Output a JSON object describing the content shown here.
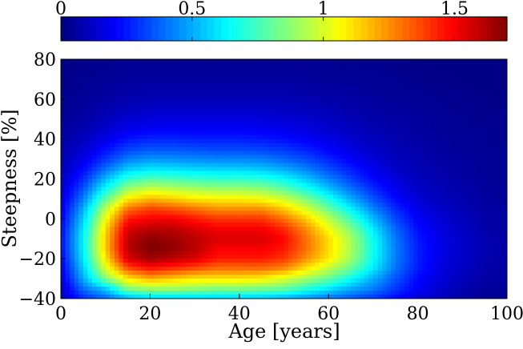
{
  "chart_data": {
    "type": "heatmap",
    "title": "",
    "xlabel": "Age [years]",
    "ylabel": "Steepness [%]",
    "xlim": [
      0,
      100
    ],
    "ylim": [
      -40,
      80
    ],
    "x_ticks": [
      "0",
      "20",
      "40",
      "60",
      "80",
      "100"
    ],
    "x_tick_values": [
      0,
      20,
      40,
      60,
      80,
      100
    ],
    "y_ticks": [
      "−40",
      "−20",
      "0",
      "20",
      "40",
      "60",
      "80"
    ],
    "y_tick_values": [
      -40,
      -20,
      0,
      20,
      40,
      60,
      80
    ],
    "colorbar": {
      "range": [
        0,
        1.7
      ],
      "ticks": [
        "0",
        "0.5",
        "1",
        "1.5"
      ],
      "tick_values": [
        0,
        0.5,
        1,
        1.5
      ],
      "placement": "top",
      "colormap": "jet"
    },
    "density": {
      "description_units": "x in years, y in percent steepness, z in colorbar units",
      "x": [
        0,
        5,
        10,
        15,
        20,
        25,
        30,
        35,
        40,
        45,
        50,
        55,
        60,
        65,
        70,
        75,
        80,
        85,
        90,
        95,
        100
      ],
      "y": [
        -40,
        -35,
        -30,
        -25,
        -20,
        -15,
        -10,
        -5,
        0,
        5,
        10,
        15,
        20,
        25,
        30,
        35,
        40,
        45,
        50,
        55,
        60,
        65,
        70,
        75,
        80
      ],
      "z": [
        [
          0.1,
          0.28,
          0.38,
          0.5,
          0.55,
          0.55,
          0.55,
          0.55,
          0.55,
          0.53,
          0.5,
          0.45,
          0.4,
          0.35,
          0.3,
          0.22,
          0.15,
          0.1,
          0.06,
          0.04,
          0.03
        ],
        [
          0.12,
          0.4,
          0.55,
          0.85,
          0.9,
          0.9,
          0.88,
          0.85,
          0.85,
          0.83,
          0.8,
          0.7,
          0.6,
          0.5,
          0.42,
          0.3,
          0.2,
          0.13,
          0.08,
          0.05,
          0.04
        ],
        [
          0.15,
          0.5,
          0.85,
          1.1,
          1.2,
          1.15,
          1.1,
          1.1,
          1.1,
          1.08,
          1.0,
          0.9,
          0.8,
          0.65,
          0.5,
          0.35,
          0.22,
          0.15,
          0.1,
          0.06,
          0.05
        ],
        [
          0.18,
          0.55,
          1.0,
          1.35,
          1.45,
          1.4,
          1.35,
          1.3,
          1.3,
          1.3,
          1.25,
          1.1,
          0.95,
          0.8,
          0.6,
          0.4,
          0.25,
          0.16,
          0.11,
          0.07,
          0.05
        ],
        [
          0.2,
          0.6,
          1.1,
          1.55,
          1.65,
          1.6,
          1.55,
          1.45,
          1.45,
          1.45,
          1.4,
          1.25,
          1.1,
          0.9,
          0.65,
          0.42,
          0.26,
          0.17,
          0.12,
          0.08,
          0.06
        ],
        [
          0.22,
          0.62,
          1.15,
          1.6,
          1.7,
          1.67,
          1.6,
          1.5,
          1.5,
          1.5,
          1.45,
          1.3,
          1.12,
          0.92,
          0.66,
          0.42,
          0.26,
          0.17,
          0.12,
          0.08,
          0.06
        ],
        [
          0.22,
          0.63,
          1.15,
          1.6,
          1.68,
          1.65,
          1.6,
          1.55,
          1.55,
          1.55,
          1.48,
          1.3,
          1.12,
          0.92,
          0.65,
          0.41,
          0.25,
          0.17,
          0.12,
          0.08,
          0.06
        ],
        [
          0.21,
          0.6,
          1.12,
          1.55,
          1.6,
          1.6,
          1.55,
          1.5,
          1.5,
          1.5,
          1.42,
          1.25,
          1.05,
          0.85,
          0.6,
          0.38,
          0.23,
          0.16,
          0.11,
          0.07,
          0.05
        ],
        [
          0.19,
          0.56,
          1.05,
          1.45,
          1.5,
          1.5,
          1.45,
          1.4,
          1.4,
          1.4,
          1.3,
          1.15,
          0.95,
          0.75,
          0.52,
          0.33,
          0.2,
          0.14,
          0.1,
          0.07,
          0.05
        ],
        [
          0.17,
          0.5,
          0.95,
          1.3,
          1.38,
          1.35,
          1.3,
          1.25,
          1.25,
          1.25,
          1.15,
          1.0,
          0.82,
          0.62,
          0.43,
          0.28,
          0.17,
          0.12,
          0.09,
          0.06,
          0.05
        ],
        [
          0.15,
          0.42,
          0.8,
          1.1,
          1.18,
          1.15,
          1.1,
          1.08,
          1.08,
          1.05,
          0.98,
          0.85,
          0.68,
          0.5,
          0.35,
          0.22,
          0.14,
          0.1,
          0.08,
          0.05,
          0.04
        ],
        [
          0.13,
          0.35,
          0.65,
          0.9,
          0.98,
          0.95,
          0.92,
          0.9,
          0.9,
          0.88,
          0.8,
          0.68,
          0.54,
          0.4,
          0.28,
          0.18,
          0.12,
          0.09,
          0.07,
          0.05,
          0.04
        ],
        [
          0.11,
          0.28,
          0.52,
          0.72,
          0.78,
          0.76,
          0.74,
          0.72,
          0.72,
          0.7,
          0.64,
          0.54,
          0.43,
          0.32,
          0.22,
          0.15,
          0.1,
          0.08,
          0.06,
          0.04,
          0.03
        ],
        [
          0.09,
          0.22,
          0.4,
          0.55,
          0.6,
          0.59,
          0.57,
          0.56,
          0.56,
          0.54,
          0.5,
          0.43,
          0.34,
          0.26,
          0.18,
          0.12,
          0.09,
          0.07,
          0.05,
          0.04,
          0.03
        ],
        [
          0.08,
          0.17,
          0.3,
          0.42,
          0.46,
          0.45,
          0.44,
          0.43,
          0.43,
          0.42,
          0.38,
          0.33,
          0.27,
          0.2,
          0.15,
          0.1,
          0.08,
          0.06,
          0.05,
          0.04,
          0.03
        ],
        [
          0.07,
          0.13,
          0.23,
          0.32,
          0.35,
          0.35,
          0.34,
          0.33,
          0.33,
          0.32,
          0.3,
          0.26,
          0.21,
          0.16,
          0.12,
          0.09,
          0.07,
          0.05,
          0.04,
          0.03,
          0.03
        ],
        [
          0.06,
          0.1,
          0.17,
          0.24,
          0.27,
          0.27,
          0.26,
          0.26,
          0.26,
          0.25,
          0.23,
          0.2,
          0.17,
          0.13,
          0.1,
          0.08,
          0.06,
          0.05,
          0.04,
          0.03,
          0.02
        ],
        [
          0.05,
          0.08,
          0.13,
          0.18,
          0.2,
          0.2,
          0.2,
          0.2,
          0.2,
          0.19,
          0.18,
          0.16,
          0.13,
          0.11,
          0.08,
          0.07,
          0.05,
          0.04,
          0.03,
          0.03,
          0.02
        ],
        [
          0.04,
          0.06,
          0.1,
          0.14,
          0.15,
          0.16,
          0.16,
          0.16,
          0.16,
          0.15,
          0.14,
          0.13,
          0.11,
          0.09,
          0.07,
          0.06,
          0.05,
          0.04,
          0.03,
          0.02,
          0.02
        ],
        [
          0.03,
          0.05,
          0.08,
          0.1,
          0.12,
          0.12,
          0.12,
          0.12,
          0.12,
          0.12,
          0.11,
          0.1,
          0.09,
          0.07,
          0.06,
          0.05,
          0.04,
          0.03,
          0.02,
          0.02,
          0.02
        ],
        [
          0.03,
          0.04,
          0.06,
          0.08,
          0.09,
          0.09,
          0.09,
          0.09,
          0.09,
          0.09,
          0.09,
          0.08,
          0.07,
          0.06,
          0.05,
          0.04,
          0.03,
          0.03,
          0.02,
          0.02,
          0.01
        ],
        [
          0.02,
          0.03,
          0.05,
          0.06,
          0.07,
          0.07,
          0.07,
          0.07,
          0.07,
          0.07,
          0.07,
          0.06,
          0.05,
          0.05,
          0.04,
          0.03,
          0.03,
          0.02,
          0.02,
          0.01,
          0.01
        ],
        [
          0.02,
          0.03,
          0.04,
          0.05,
          0.05,
          0.05,
          0.05,
          0.05,
          0.05,
          0.05,
          0.05,
          0.05,
          0.04,
          0.04,
          0.03,
          0.03,
          0.02,
          0.02,
          0.01,
          0.01,
          0.01
        ],
        [
          0.02,
          0.02,
          0.03,
          0.04,
          0.04,
          0.04,
          0.04,
          0.04,
          0.04,
          0.04,
          0.04,
          0.04,
          0.03,
          0.03,
          0.03,
          0.02,
          0.02,
          0.01,
          0.01,
          0.01,
          0.01
        ],
        [
          0.01,
          0.02,
          0.02,
          0.03,
          0.03,
          0.03,
          0.03,
          0.03,
          0.03,
          0.03,
          0.03,
          0.03,
          0.03,
          0.02,
          0.02,
          0.02,
          0.01,
          0.01,
          0.01,
          0.01,
          0.01
        ]
      ]
    }
  }
}
